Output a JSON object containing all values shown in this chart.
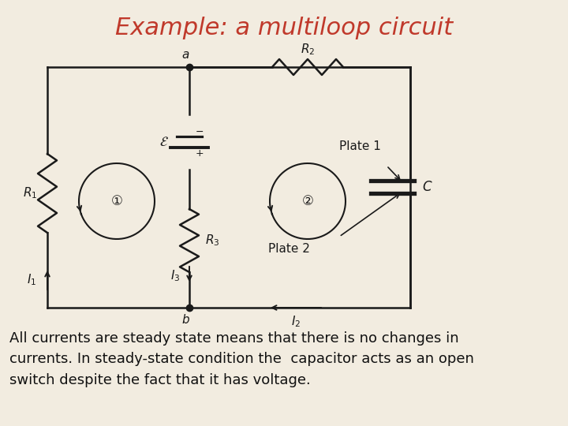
{
  "title": "Example: a multiloop circuit",
  "title_color": "#c0392b",
  "title_fontsize": 22,
  "bg_color": "#f2ece0",
  "circuit_color": "#1a1a1a",
  "text_color": "#111111",
  "body_text_line1": "All currents are steady state means that there is no changes in",
  "body_text_line2": "currents. In steady-state condition the  capacitor acts as an open",
  "body_text_line3": "switch despite the fact that it has voltage.",
  "body_fontsize": 13,
  "label_fontsize": 11,
  "small_fontsize": 10
}
